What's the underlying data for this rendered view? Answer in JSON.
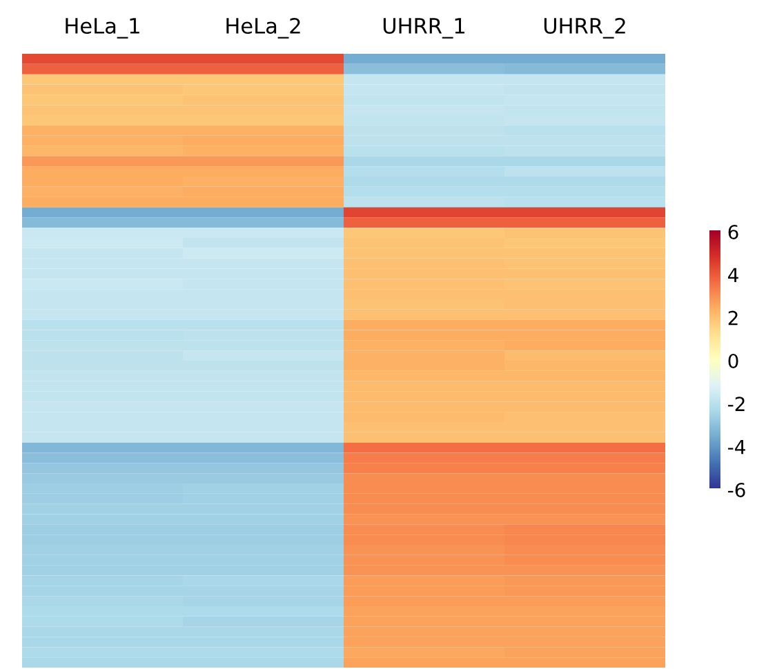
{
  "chart_data": {
    "type": "heatmap",
    "categories": [
      "HeLa_1",
      "HeLa_2",
      "UHRR_1",
      "UHRR_2"
    ],
    "y_categories": [
      null,
      null,
      null,
      null,
      null,
      null,
      null,
      null,
      null,
      null,
      null,
      null,
      null,
      null,
      null,
      null,
      null,
      null,
      null,
      null,
      null,
      null,
      null,
      null,
      null,
      null,
      null,
      null,
      null,
      null,
      null,
      null,
      null,
      null,
      null,
      null,
      null,
      null,
      null,
      null,
      null,
      null,
      null,
      null,
      null,
      null,
      null,
      null,
      null,
      null,
      null,
      null,
      null,
      null,
      null,
      null,
      null,
      null,
      null,
      null
    ],
    "cells": [
      [
        4.3,
        4.3,
        -3.6,
        -3.6
      ],
      [
        3.8,
        3.8,
        -3.1,
        -3.2
      ],
      [
        1.8,
        1.8,
        -1.8,
        -1.8
      ],
      [
        1.9,
        1.8,
        -1.8,
        -1.9
      ],
      [
        1.8,
        1.9,
        -1.9,
        -1.8
      ],
      [
        1.9,
        1.9,
        -1.8,
        -1.9
      ],
      [
        1.8,
        1.8,
        -1.9,
        -1.8
      ],
      [
        2.3,
        2.3,
        -2.0,
        -2.1
      ],
      [
        2.3,
        2.4,
        -2.0,
        -2.0
      ],
      [
        2.2,
        2.3,
        -2.1,
        -2.0
      ],
      [
        2.8,
        2.8,
        -2.4,
        -2.4
      ],
      [
        2.4,
        2.4,
        -2.2,
        -2.0
      ],
      [
        2.4,
        2.3,
        -2.3,
        -2.3
      ],
      [
        2.3,
        2.4,
        -2.2,
        -2.2
      ],
      [
        2.4,
        2.4,
        -2.0,
        -2.1
      ],
      [
        -3.6,
        -3.6,
        4.4,
        4.4
      ],
      [
        -3.2,
        -3.2,
        3.8,
        3.8
      ],
      [
        -1.7,
        -1.7,
        1.8,
        1.9
      ],
      [
        -1.6,
        -1.9,
        1.9,
        1.8
      ],
      [
        -1.8,
        -1.6,
        1.9,
        1.9
      ],
      [
        -1.8,
        -1.8,
        2.0,
        1.9
      ],
      [
        -1.8,
        -1.8,
        2.0,
        2.0
      ],
      [
        -1.7,
        -1.8,
        2.0,
        1.9
      ],
      [
        -1.8,
        -1.8,
        2.0,
        2.0
      ],
      [
        -1.8,
        -1.8,
        1.9,
        2.0
      ],
      [
        -1.8,
        -1.8,
        2.0,
        2.0
      ],
      [
        -2.1,
        -2.1,
        2.4,
        2.4
      ],
      [
        -2.1,
        -2.0,
        2.4,
        2.4
      ],
      [
        -2.0,
        -2.0,
        2.3,
        2.4
      ],
      [
        -2.0,
        -1.8,
        2.3,
        2.1
      ],
      [
        -2.0,
        -2.0,
        2.3,
        2.2
      ],
      [
        -1.9,
        -1.9,
        2.2,
        2.2
      ],
      [
        -1.9,
        -1.9,
        2.1,
        2.1
      ],
      [
        -1.9,
        -1.9,
        2.1,
        2.1
      ],
      [
        -1.8,
        -1.8,
        2.1,
        2.1
      ],
      [
        -1.8,
        -1.8,
        2.1,
        2.0
      ],
      [
        -1.8,
        -1.8,
        2.0,
        2.0
      ],
      [
        -1.8,
        -1.8,
        2.0,
        2.0
      ],
      [
        -3.3,
        -3.3,
        3.6,
        3.6
      ],
      [
        -3.1,
        -3.1,
        3.3,
        3.3
      ],
      [
        -2.9,
        -2.9,
        3.2,
        3.2
      ],
      [
        -2.8,
        -2.8,
        3.0,
        3.0
      ],
      [
        -2.7,
        -2.6,
        3.0,
        3.0
      ],
      [
        -2.7,
        -2.6,
        3.0,
        3.0
      ],
      [
        -2.6,
        -2.6,
        3.0,
        3.0
      ],
      [
        -2.6,
        -2.6,
        2.9,
        2.9
      ],
      [
        -2.7,
        -2.7,
        3.0,
        3.1
      ],
      [
        -2.7,
        -2.7,
        3.0,
        3.1
      ],
      [
        -2.6,
        -2.6,
        2.9,
        3.0
      ],
      [
        -2.6,
        -2.6,
        2.9,
        3.0
      ],
      [
        -2.6,
        -2.6,
        2.9,
        2.9
      ],
      [
        -2.5,
        -2.4,
        2.7,
        2.8
      ],
      [
        -2.5,
        -2.5,
        2.7,
        2.8
      ],
      [
        -2.4,
        -2.5,
        2.7,
        2.7
      ],
      [
        -2.3,
        -2.3,
        2.6,
        2.6
      ],
      [
        -2.3,
        -2.5,
        2.6,
        2.6
      ],
      [
        -2.4,
        -2.4,
        2.6,
        2.6
      ],
      [
        -2.4,
        -2.4,
        2.6,
        2.6
      ],
      [
        -2.3,
        -2.3,
        2.5,
        2.6
      ],
      [
        -2.4,
        -2.4,
        2.6,
        2.6
      ]
    ],
    "clim": [
      -6,
      6
    ],
    "cticks": [
      {
        "value": -6,
        "label": "-6"
      },
      {
        "value": -4,
        "label": "-4"
      },
      {
        "value": -2,
        "label": "-2"
      },
      0,
      2,
      4,
      6
    ]
  }
}
